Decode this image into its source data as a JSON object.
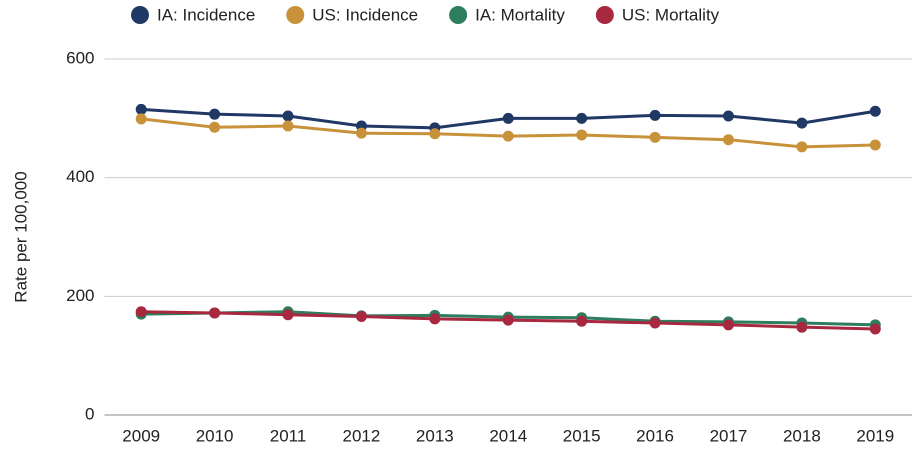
{
  "chart_data": {
    "type": "line",
    "categories": [
      "2009",
      "2010",
      "2011",
      "2012",
      "2013",
      "2014",
      "2015",
      "2016",
      "2017",
      "2018",
      "2019"
    ],
    "series": [
      {
        "name": "IA: Incidence",
        "color": "#203864",
        "values": [
          515,
          507,
          504,
          487,
          484,
          500,
          500,
          505,
          504,
          492,
          512
        ]
      },
      {
        "name": "US: Incidence",
        "color": "#c8923a",
        "values": [
          499,
          485,
          487,
          475,
          474,
          470,
          472,
          468,
          464,
          452,
          455
        ]
      },
      {
        "name": "IA: Mortality",
        "color": "#2e7d5e",
        "values": [
          170,
          172,
          174,
          167,
          168,
          165,
          164,
          158,
          157,
          155,
          152
        ]
      },
      {
        "name": "US: Mortality",
        "color": "#a8283f",
        "values": [
          174,
          172,
          169,
          166,
          162,
          160,
          158,
          155,
          152,
          148,
          145
        ]
      }
    ],
    "y_label": "Rate per 100,000",
    "ylim": [
      0,
      600
    ],
    "yticks": [
      0,
      200,
      400,
      600
    ],
    "grid": true,
    "legend": "top"
  }
}
